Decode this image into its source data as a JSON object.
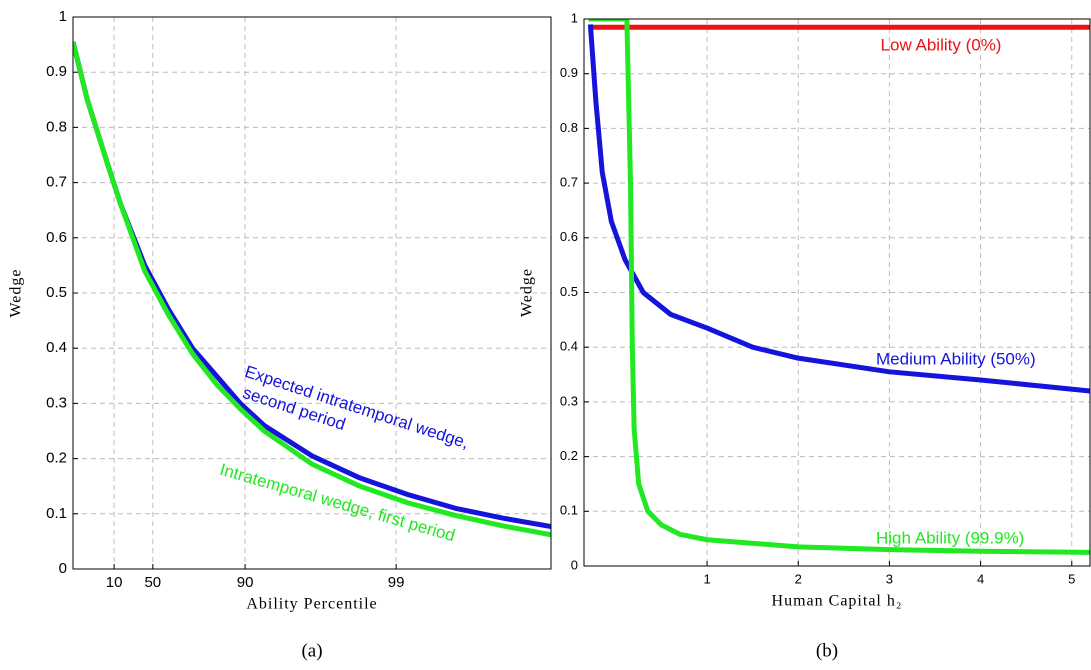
{
  "chart_data": [
    {
      "type": "line",
      "caption": "(a)",
      "x_label": "Ability Percentile",
      "y_label": "Wedge",
      "xlim": [
        0,
        100
      ],
      "ylim": [
        0,
        1
      ],
      "xticks": [
        {
          "value": 8.6,
          "label": "10"
        },
        {
          "value": 16.7,
          "label": "50"
        },
        {
          "value": 36,
          "label": "90"
        },
        {
          "value": 67.6,
          "label": "99"
        }
      ],
      "yticks": [
        0,
        0.1,
        0.2,
        0.3,
        0.4,
        0.5,
        0.6,
        0.7,
        0.8,
        0.9,
        1
      ],
      "grid": true,
      "series": [
        {
          "color": "#1414dc",
          "x": [
            0,
            3,
            7,
            10,
            15,
            20,
            25,
            30,
            35,
            40,
            50,
            60,
            70,
            80,
            90,
            100
          ],
          "values": [
            0.955,
            0.85,
            0.74,
            0.66,
            0.55,
            0.47,
            0.4,
            0.35,
            0.3,
            0.26,
            0.205,
            0.165,
            0.135,
            0.11,
            0.092,
            0.077
          ]
        },
        {
          "color": "#22e822",
          "x": [
            0,
            3,
            7,
            10,
            15,
            20,
            25,
            30,
            35,
            40,
            50,
            60,
            70,
            80,
            90,
            100
          ],
          "values": [
            0.955,
            0.85,
            0.74,
            0.66,
            0.54,
            0.46,
            0.39,
            0.335,
            0.29,
            0.25,
            0.19,
            0.15,
            0.12,
            0.097,
            0.078,
            0.062
          ]
        }
      ],
      "annotations": [
        {
          "text": "Expected intratemporal wedge,",
          "color": "#1414dc"
        },
        {
          "text": "second period",
          "color": "#1414dc"
        },
        {
          "text": "Intratemporal wedge, first period",
          "color": "#22e822"
        }
      ]
    },
    {
      "type": "line",
      "caption": "(b)",
      "x_label": "Human Capital h₂",
      "y_label": "Wedge",
      "xlim": [
        -0.35,
        5.2
      ],
      "ylim": [
        0,
        1
      ],
      "xticks": [
        1,
        2,
        3,
        4,
        5
      ],
      "yticks": [
        0,
        0.1,
        0.2,
        0.3,
        0.4,
        0.5,
        0.6,
        0.7,
        0.8,
        0.9,
        1
      ],
      "grid": true,
      "series": [
        {
          "name": "Low Ability (0%)",
          "color": "#ee1111",
          "x": [
            -0.3,
            5.2
          ],
          "values": [
            0.985,
            0.985
          ]
        },
        {
          "name": "Medium Ability (50%)",
          "color": "#1414dc",
          "x": [
            -0.28,
            -0.22,
            -0.15,
            -0.05,
            0.1,
            0.3,
            0.6,
            1,
            1.5,
            2,
            3,
            4,
            5.2
          ],
          "values": [
            0.99,
            0.85,
            0.72,
            0.63,
            0.56,
            0.5,
            0.46,
            0.435,
            0.4,
            0.38,
            0.355,
            0.34,
            0.32
          ]
        },
        {
          "name": "High Ability (99.9%)",
          "color": "#22e822",
          "x": [
            -0.3,
            0.12,
            0.16,
            0.18,
            0.2,
            0.25,
            0.35,
            0.5,
            0.7,
            1,
            2,
            3,
            4,
            5.2
          ],
          "values": [
            1,
            1,
            0.7,
            0.4,
            0.25,
            0.15,
            0.1,
            0.075,
            0.058,
            0.048,
            0.035,
            0.03,
            0.027,
            0.025
          ]
        }
      ]
    }
  ]
}
